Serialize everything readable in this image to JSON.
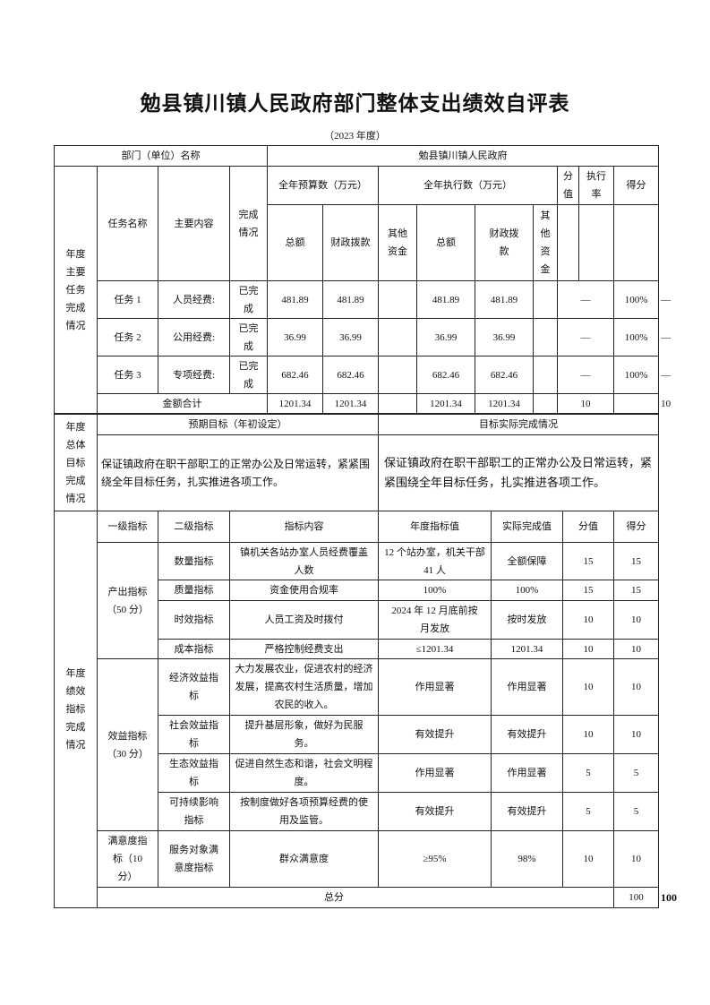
{
  "title": "勉县镇川镇人民政府部门整体支出绩效自评表",
  "subtitle": "（2023 年度）",
  "dept": {
    "label": "部门（单位）名称",
    "value": "勉县镇川镇人民政府"
  },
  "tasks": {
    "section_label": "年度主要任务完成情况",
    "headers": {
      "task_name": "任务名称",
      "content": "主要内容",
      "status": "完成情况",
      "budget": "全年预算数（万元）",
      "execution": "全年执行数（万元）",
      "score_value": "分值",
      "exec_rate": "执行率",
      "score": "得分",
      "total": "总额",
      "fiscal": "财政拨款",
      "other": "其他资金",
      "exec_total": "总额",
      "exec_fiscal": "财政拨款",
      "exec_other": "其他资金"
    },
    "rows": [
      {
        "name": "任务 1",
        "content": "人员经费:",
        "status": "已完成",
        "budget_total": "481.89",
        "budget_fiscal": "481.89",
        "budget_other": "",
        "exec_total": "481.89",
        "exec_fiscal": "481.89",
        "exec_other": "",
        "score_value": "—",
        "exec_rate": "100%",
        "score": "—"
      },
      {
        "name": "任务 2",
        "content": "公用经费:",
        "status": "已完成",
        "budget_total": "36.99",
        "budget_fiscal": "36.99",
        "budget_other": "",
        "exec_total": "36.99",
        "exec_fiscal": "36.99",
        "exec_other": "",
        "score_value": "—",
        "exec_rate": "100%",
        "score": "—"
      },
      {
        "name": "任务 3",
        "content": "专项经费:",
        "status": "已完成",
        "budget_total": "682.46",
        "budget_fiscal": "682.46",
        "budget_other": "",
        "exec_total": "682.46",
        "exec_fiscal": "682.46",
        "exec_other": "",
        "score_value": "—",
        "exec_rate": "100%",
        "score": "—"
      }
    ],
    "sum": {
      "label": "金额合计",
      "budget_total": "1201.34",
      "budget_fiscal": "1201.34",
      "exec_total": "1201.34",
      "exec_fiscal": "1201.34",
      "score_value": "10",
      "score": "10"
    }
  },
  "goals": {
    "section_label": "年度总体目标完成情况",
    "expected_header": "预期目标（年初设定）",
    "actual_header": "目标实际完成情况",
    "expected": "保证镇政府在职干部职工的正常办公及日常运转，紧紧围绕全年目标任务，扎实推进各项工作。",
    "actual": "保证镇政府在职干部职工的正常办公及日常运转，紧紧围绕全年目标任务，扎实推进各项工作。"
  },
  "indicators": {
    "section_label": "年度绩效指标完成情况",
    "headers": [
      "一级指标",
      "二级指标",
      "指标内容",
      "年度指标值",
      "实际完成值",
      "分值",
      "得分"
    ],
    "groups": [
      {
        "name": "产出指标（50 分）",
        "rows": [
          {
            "l2": "数量指标",
            "content": "镇机关各站办室人员经费覆盖人数",
            "target": "12 个站办室，机关干部 41 人",
            "actual": "全额保障",
            "value": "15",
            "score": "15"
          },
          {
            "l2": "质量指标",
            "content": "资金使用合规率",
            "target": "100%",
            "actual": "100%",
            "value": "15",
            "score": "15"
          },
          {
            "l2": "时效指标",
            "content": "人员工资及时拨付",
            "target": "2024 年 12 月底前按月发放",
            "actual": "按时发放",
            "value": "10",
            "score": "10"
          },
          {
            "l2": "成本指标",
            "content": "严格控制经费支出",
            "target": "≤1201.34",
            "actual": "1201.34",
            "value": "10",
            "score": "10"
          }
        ]
      },
      {
        "name": "效益指标（30 分）",
        "rows": [
          {
            "l2": "经济效益指标",
            "content": "大力发展农业，促进农村的经济发展，提高农村生活质量，增加农民的收入。",
            "target": "作用显著",
            "actual": "作用显著",
            "value": "10",
            "score": "10"
          },
          {
            "l2": "社会效益指标",
            "content": "提升基层形象，做好为民服务。",
            "target": "有效提升",
            "actual": "有效提升",
            "value": "10",
            "score": "10"
          },
          {
            "l2": "生态效益指标",
            "content": "促进自然生态和谐，社会文明程度。",
            "target": "作用显著",
            "actual": "作用显著",
            "value": "5",
            "score": "5"
          },
          {
            "l2": "可持续影响指标",
            "content": "按制度做好各项预算经费的使用及监管。",
            "target": "有效提升",
            "actual": "有效提升",
            "value": "5",
            "score": "5"
          }
        ]
      },
      {
        "name": "满意度指标（10 分）",
        "rows": [
          {
            "l2": "服务对象满意度指标",
            "content": "群众满意度",
            "target": "≥95%",
            "actual": "98%",
            "value": "10",
            "score": "10"
          }
        ]
      }
    ],
    "total": {
      "label": "总分",
      "value": "100",
      "score": "100"
    }
  }
}
